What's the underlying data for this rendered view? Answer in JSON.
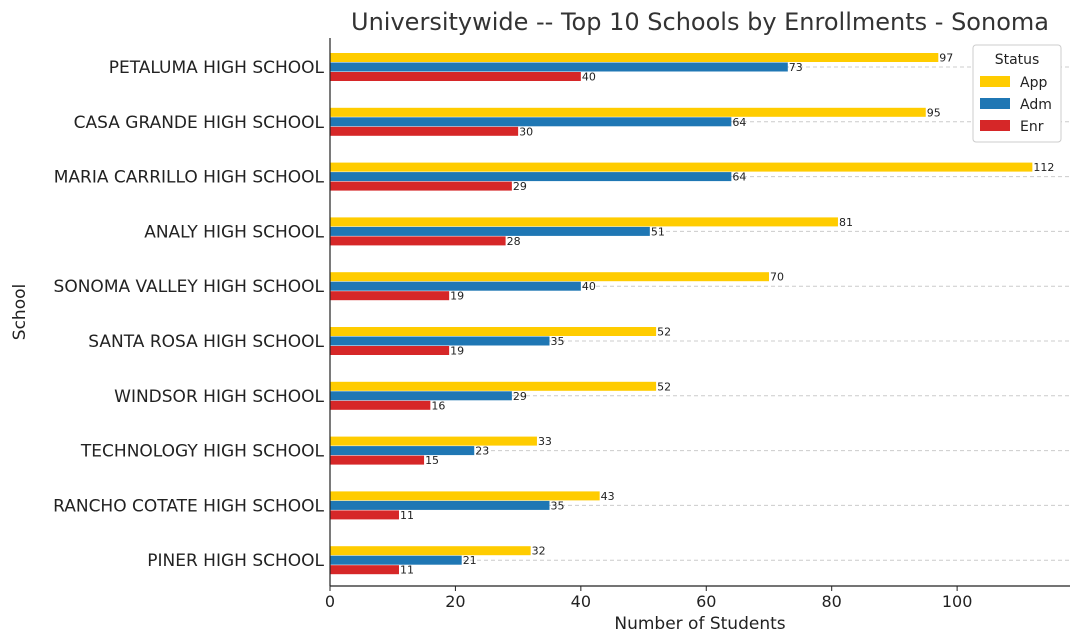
{
  "chart_data": {
    "type": "bar",
    "orientation": "horizontal",
    "title": "Universitywide -- Top 10 Schools by Enrollments - Sonoma",
    "xlabel": "Number of Students",
    "ylabel": "School",
    "xlim": [
      0,
      118
    ],
    "xticks": [
      0,
      20,
      40,
      60,
      80,
      100
    ],
    "grid": "horizontal dashed",
    "legend": {
      "title": "Status",
      "position": "top-right"
    },
    "categories": [
      "PETALUMA HIGH SCHOOL",
      "CASA GRANDE HIGH SCHOOL",
      "MARIA CARRILLO HIGH SCHOOL",
      "ANALY HIGH SCHOOL",
      "SONOMA VALLEY HIGH SCHOOL",
      "SANTA ROSA HIGH SCHOOL",
      "WINDSOR HIGH SCHOOL",
      "TECHNOLOGY HIGH SCHOOL",
      "RANCHO COTATE HIGH SCHOOL",
      "PINER HIGH SCHOOL"
    ],
    "series": [
      {
        "name": "App",
        "color": "#FFCC00",
        "values": [
          97,
          95,
          112,
          81,
          70,
          52,
          52,
          33,
          43,
          32
        ]
      },
      {
        "name": "Adm",
        "color": "#1F77B4",
        "values": [
          73,
          64,
          64,
          51,
          40,
          35,
          29,
          23,
          35,
          21
        ]
      },
      {
        "name": "Enr",
        "color": "#D62728",
        "values": [
          40,
          30,
          29,
          28,
          19,
          19,
          16,
          15,
          11,
          11
        ]
      }
    ]
  }
}
